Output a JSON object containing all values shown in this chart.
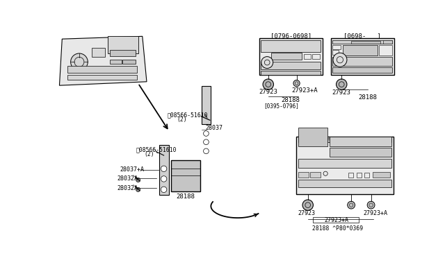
{
  "bg_color": "#ffffff",
  "parts": {
    "bracket_label": "28037",
    "bracket_a_label": "28037+A",
    "bolt1_label": "28032A",
    "bolt2_label": "28032A",
    "radio_label": "28188",
    "screw_label": "08566-51610",
    "screw_qty": "(2)",
    "knob1_label": "27923",
    "knob2_label": "27923+A",
    "knob3_label": "27923",
    "radio1_label": "28188",
    "radio2_label": "28188",
    "radio3_label": "28188",
    "date1": "[0796-0698]",
    "date2": "[0698-   ]",
    "date3": "[0395-0796]",
    "note": "^P80*0369"
  }
}
